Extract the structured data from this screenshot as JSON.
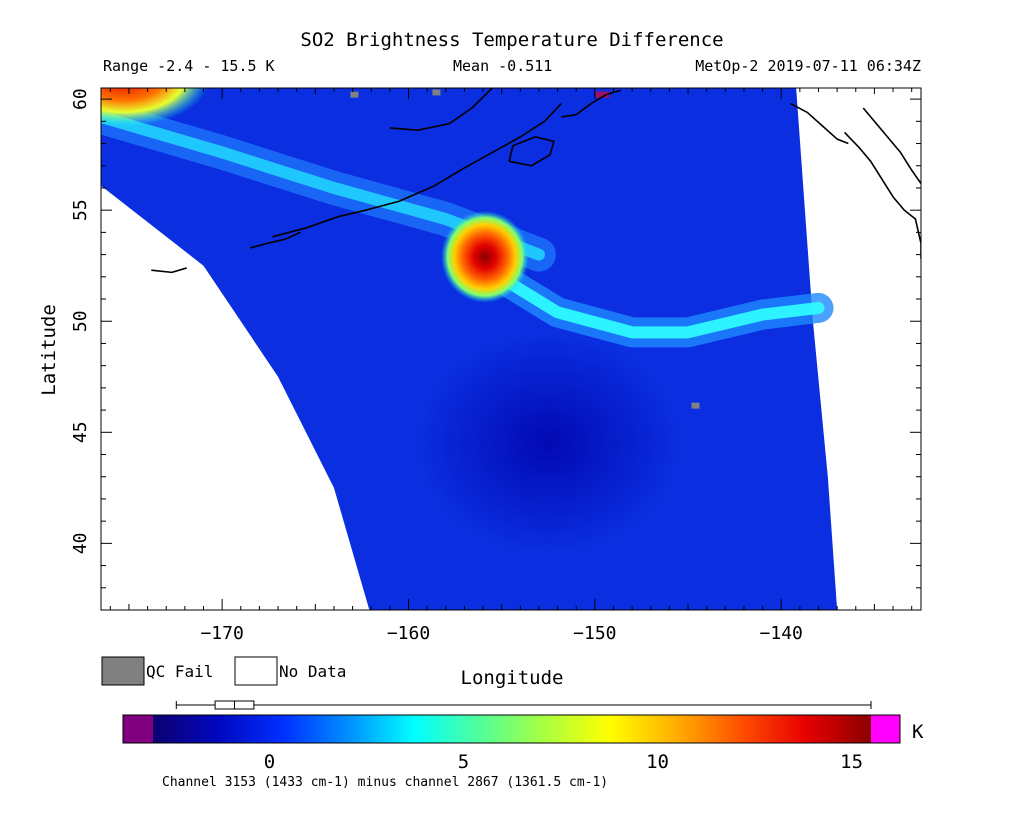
{
  "chart_data": {
    "type": "heatmap",
    "title": "SO2 Brightness Temperature Difference",
    "header": {
      "range": "Range -2.4 - 15.5 K",
      "mean": "Mean -0.511",
      "satellite": "MetOp-2 2019-07-11 06:34Z"
    },
    "xlabel": "Longitude",
    "ylabel": "Latitude",
    "xlim": [
      -176.5,
      -132.5
    ],
    "ylim": [
      37,
      60.5
    ],
    "xticks": [
      -170,
      -160,
      -150,
      -140
    ],
    "yticks": [
      40,
      45,
      50,
      55,
      60
    ],
    "xtick_labels": [
      "−170",
      "−160",
      "−150",
      "−140"
    ],
    "ytick_labels": [
      "40",
      "45",
      "50",
      "55",
      "60"
    ],
    "swath_edges": {
      "left": [
        [
          -176.5,
          56.1
        ],
        [
          -171,
          52.5
        ],
        [
          -167,
          47.5
        ],
        [
          -164,
          42.5
        ],
        [
          -162.1,
          37
        ]
      ],
      "right": [
        [
          -139.2,
          60.5
        ],
        [
          -138.3,
          50
        ],
        [
          -137.5,
          43
        ],
        [
          -137,
          37
        ]
      ]
    },
    "features": [
      {
        "name": "SO2 plume core",
        "lon": -155.9,
        "lat": 52.9,
        "value": 15.5
      },
      {
        "name": "hot corner",
        "lon": -174.5,
        "lat": 60.2,
        "value": 14
      },
      {
        "name": "QC fail pixel",
        "lon": -144.6,
        "lat": 46.2,
        "value": "QC Fail"
      },
      {
        "name": "QC fail pixel",
        "lon": -162.9,
        "lat": 60.2,
        "value": "QC Fail"
      },
      {
        "name": "QC fail pixel",
        "lon": -158.5,
        "lat": 60.3,
        "value": "QC Fail"
      }
    ],
    "colorbar": {
      "min": -3,
      "max": 15.5,
      "ticks": [
        0,
        5,
        10,
        15
      ],
      "unit": "K",
      "stops": [
        "#0d0070",
        "#0008c0",
        "#0030ff",
        "#0090ff",
        "#00ffff",
        "#50ff9a",
        "#a8ff40",
        "#ffff00",
        "#ffb000",
        "#ff5000",
        "#e80000",
        "#8a0000"
      ],
      "underflow_color": "#800080",
      "overflow_color": "#ff00ff",
      "boxplot": {
        "min": -2.4,
        "q1": -1.4,
        "median": -0.9,
        "q3": -0.4,
        "max": 15.5
      }
    },
    "legend": [
      {
        "label": "QC Fail",
        "color": "#808080"
      },
      {
        "label": "No Data",
        "color": "#ffffff"
      }
    ],
    "footnote": "Channel 3153 (1433 cm-1) minus channel 2867 (1361.5 cm-1)"
  }
}
